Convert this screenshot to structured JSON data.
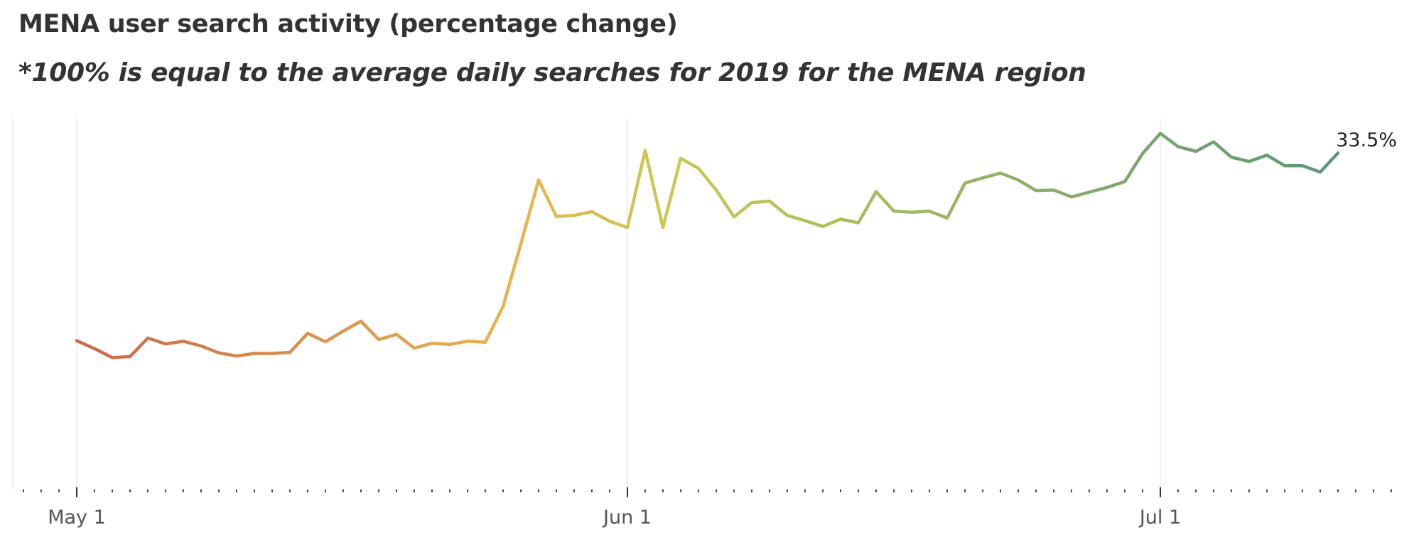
{
  "title": "MENA user search activity (percentage change)",
  "subtitle": "*100% is equal to the average daily searches for 2019 for the MENA region",
  "chart_data": {
    "type": "line",
    "title": "MENA user search activity (percentage change)",
    "subtitle": "*100% is equal to the average daily searches for 2019 for the MENA region",
    "xlabel": "",
    "ylabel": "",
    "x_tick_labels": [
      "May 1",
      "Jun 1",
      "Jul 1"
    ],
    "x_start": "2020-05-01",
    "ylim": [
      -30,
      40
    ],
    "grid": "vertical lines at month ticks",
    "end_label": "33.5%",
    "color_scale": [
      "#c8694a",
      "#e8b24f",
      "#c9c952",
      "#5a977a"
    ],
    "series": [
      {
        "values": [
          -2.0,
          -3.5,
          -5.2,
          -5.0,
          -1.5,
          -2.6,
          -2.1,
          -3.0,
          -4.3,
          -4.9,
          -4.4,
          -4.4,
          -4.2,
          -0.6,
          -2.2,
          -0.2,
          1.7,
          -1.8,
          -0.8,
          -3.4,
          -2.5,
          -2.7,
          -2.1,
          -2.3,
          4.5,
          16.3,
          28.4,
          21.5,
          21.7,
          22.4,
          20.6,
          19.4,
          34.0,
          19.4,
          32.5,
          30.6,
          26.5,
          21.4,
          24.1,
          24.4,
          21.7,
          20.7,
          19.6,
          21.0,
          20.3,
          26.2,
          22.5,
          22.3,
          22.5,
          21.2,
          27.8,
          28.8,
          29.7,
          28.4,
          26.4,
          26.5,
          25.2,
          26.1,
          27.0,
          28.1,
          33.4,
          37.2,
          34.7,
          33.8,
          35.6,
          32.7,
          31.9,
          33.1,
          31.1,
          31.1,
          29.9,
          33.5
        ]
      }
    ]
  }
}
